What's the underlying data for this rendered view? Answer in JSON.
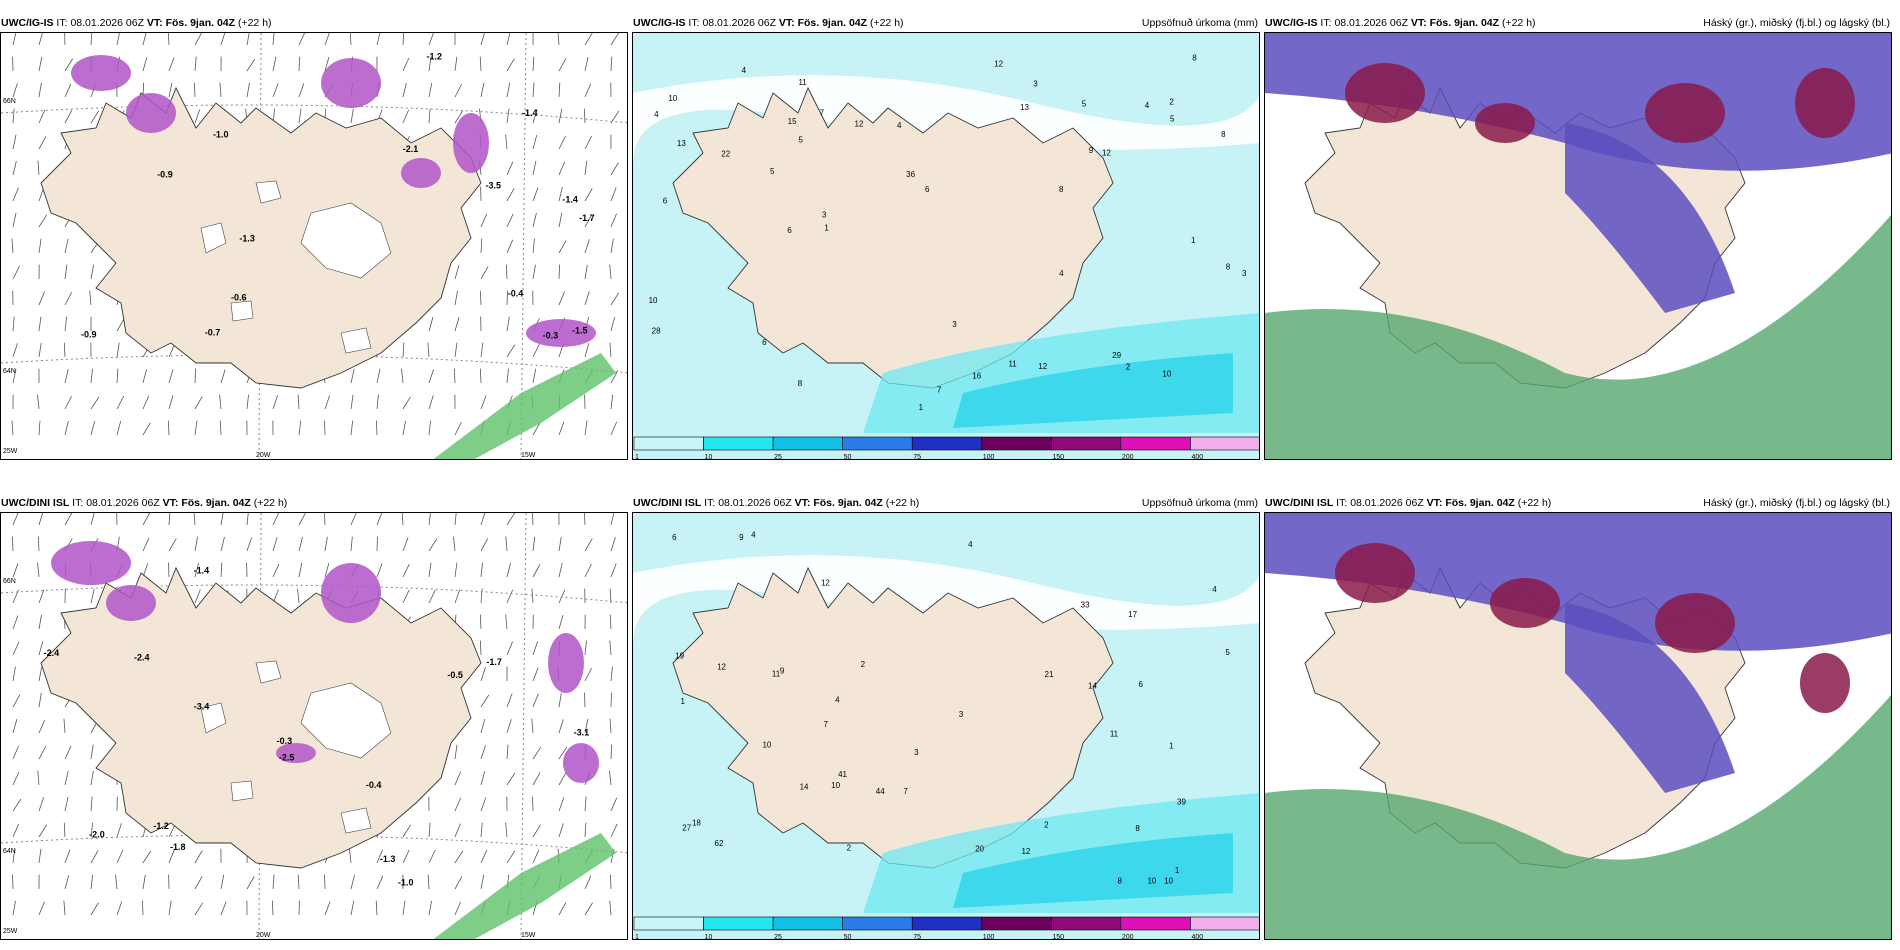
{
  "panels": [
    {
      "model": "UWC/IG-IS",
      "it_label": "IT:",
      "it": "08.01.2026 06Z",
      "vt_label": "VT:",
      "vt": "Fös. 9jan. 04Z",
      "lead": "(+22 h)",
      "right": ""
    },
    {
      "model": "UWC/IG-IS",
      "it_label": "IT:",
      "it": "08.01.2026 06Z",
      "vt_label": "VT:",
      "vt": "Fös. 9jan. 04Z",
      "lead": "(+22 h)",
      "right": "Uppsöfnuð úrkoma (mm)"
    },
    {
      "model": "UWC/IG-IS",
      "it_label": "IT:",
      "it": "08.01.2026 06Z",
      "vt_label": "VT:",
      "vt": "Fös. 9jan. 04Z",
      "lead": "(+22 h)",
      "right": "Háský (gr.), miðský (fj.bl.) og lágský (bl.)"
    },
    {
      "model": "UWC/DINI ISL",
      "it_label": "IT:",
      "it": "08.01.2026 06Z",
      "vt_label": "VT:",
      "vt": "Fös. 9jan. 04Z",
      "lead": "(+22 h)",
      "right": ""
    },
    {
      "model": "UWC/DINI ISL",
      "it_label": "IT:",
      "it": "08.01.2026 06Z",
      "vt_label": "VT:",
      "vt": "Fös. 9jan. 04Z",
      "lead": "(+22 h)",
      "right": "Uppsöfnuð úrkoma (mm)"
    },
    {
      "model": "UWC/DINI ISL",
      "it_label": "IT:",
      "it": "08.01.2026 06Z",
      "vt_label": "VT:",
      "vt": "Fös. 9jan. 04Z",
      "lead": "(+22 h)",
      "right": "Háský (gr.), miðský (fj.bl.) og lágský (bl.)"
    }
  ],
  "axis_labels": {
    "lon1": "20W",
    "lon2": "15W",
    "lon3": "25W",
    "lat1": "66N",
    "lat2": "64N",
    "lat3": "65N"
  },
  "colorbar": {
    "ticks": [
      "1",
      "10",
      "25",
      "50",
      "75",
      "100",
      "150",
      "200",
      "400"
    ],
    "colors": [
      "#c8f5f8",
      "#20e8f0",
      "#10c0e8",
      "#2a7be8",
      "#2030c0",
      "#6a005a",
      "#900a7a",
      "#e010b8",
      "#f0b0f0"
    ]
  },
  "colors": {
    "land": "#f3e6d6",
    "sea_precip": "#c7f3f7",
    "high_cloud": "#56a86e",
    "mid_cloud": "#5a4ec0",
    "low_cloud": "#8a1a4a",
    "snow": "#b055c8"
  },
  "precip_ig": [
    "13",
    "5",
    "8",
    "7",
    "4",
    "1",
    "4",
    "1",
    "2",
    "3",
    "8",
    "7",
    "9",
    "6",
    "6",
    "8",
    "3",
    "4",
    "10",
    "11",
    "2",
    "1",
    "6",
    "3",
    "5",
    "5",
    "5",
    "3",
    "4",
    "6",
    "10",
    "12",
    "8",
    "22",
    "10",
    "11",
    "12",
    "13",
    "12",
    "28",
    "12",
    "15",
    "36",
    "29",
    "16",
    "8",
    "4"
  ],
  "precip_dini": [
    "3",
    "11",
    "9",
    "11",
    "10",
    "12",
    "7",
    "7",
    "10",
    "14",
    "6",
    "4",
    "6",
    "8",
    "4",
    "2",
    "3",
    "5",
    "4",
    "2",
    "10",
    "9",
    "12",
    "14",
    "8",
    "21",
    "20",
    "18",
    "17",
    "27",
    "41",
    "44",
    "62",
    "39",
    "33",
    "19",
    "12",
    "4",
    "10",
    "2",
    "1",
    "1",
    "1"
  ],
  "temp_ig": [
    "-1.0",
    "-1.4",
    "-2.1",
    "-1.7",
    "-1.3",
    "-1.5",
    "-0.6",
    "-1.2",
    "-0.3",
    "-1.4",
    "-0.9",
    "-0.4",
    "-3.5",
    "-0.7",
    "-0.9"
  ],
  "temp_dini": [
    "-1.0",
    "-1.4",
    "-1.2",
    "-2.4",
    "-1.7",
    "-1.3",
    "-3.1",
    "-3.4",
    "-2.5",
    "-1.8",
    "-2.0",
    "-2.4",
    "-0.3",
    "-0.4",
    "-0.5"
  ]
}
